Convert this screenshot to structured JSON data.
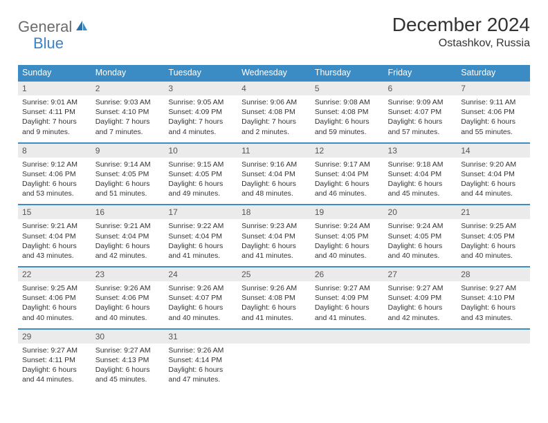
{
  "logo": {
    "text1": "General",
    "text2": "Blue"
  },
  "title": "December 2024",
  "location": "Ostashkov, Russia",
  "weekdays": [
    "Sunday",
    "Monday",
    "Tuesday",
    "Wednesday",
    "Thursday",
    "Friday",
    "Saturday"
  ],
  "colors": {
    "header_bg": "#3b8bc4",
    "daynum_bg": "#ebebeb",
    "border_top": "#3b8bc4",
    "text": "#333333",
    "logo_gray": "#6b6b6b",
    "logo_blue": "#3b82c4",
    "page_bg": "#ffffff"
  },
  "typography": {
    "title_fontsize": 28,
    "location_fontsize": 16,
    "weekday_fontsize": 12.5,
    "daynum_fontsize": 12,
    "body_fontsize": 10.5
  },
  "weeks": [
    [
      {
        "day": "1",
        "sunrise": "Sunrise: 9:01 AM",
        "sunset": "Sunset: 4:11 PM",
        "daylight": "Daylight: 7 hours and 9 minutes."
      },
      {
        "day": "2",
        "sunrise": "Sunrise: 9:03 AM",
        "sunset": "Sunset: 4:10 PM",
        "daylight": "Daylight: 7 hours and 7 minutes."
      },
      {
        "day": "3",
        "sunrise": "Sunrise: 9:05 AM",
        "sunset": "Sunset: 4:09 PM",
        "daylight": "Daylight: 7 hours and 4 minutes."
      },
      {
        "day": "4",
        "sunrise": "Sunrise: 9:06 AM",
        "sunset": "Sunset: 4:08 PM",
        "daylight": "Daylight: 7 hours and 2 minutes."
      },
      {
        "day": "5",
        "sunrise": "Sunrise: 9:08 AM",
        "sunset": "Sunset: 4:08 PM",
        "daylight": "Daylight: 6 hours and 59 minutes."
      },
      {
        "day": "6",
        "sunrise": "Sunrise: 9:09 AM",
        "sunset": "Sunset: 4:07 PM",
        "daylight": "Daylight: 6 hours and 57 minutes."
      },
      {
        "day": "7",
        "sunrise": "Sunrise: 9:11 AM",
        "sunset": "Sunset: 4:06 PM",
        "daylight": "Daylight: 6 hours and 55 minutes."
      }
    ],
    [
      {
        "day": "8",
        "sunrise": "Sunrise: 9:12 AM",
        "sunset": "Sunset: 4:06 PM",
        "daylight": "Daylight: 6 hours and 53 minutes."
      },
      {
        "day": "9",
        "sunrise": "Sunrise: 9:14 AM",
        "sunset": "Sunset: 4:05 PM",
        "daylight": "Daylight: 6 hours and 51 minutes."
      },
      {
        "day": "10",
        "sunrise": "Sunrise: 9:15 AM",
        "sunset": "Sunset: 4:05 PM",
        "daylight": "Daylight: 6 hours and 49 minutes."
      },
      {
        "day": "11",
        "sunrise": "Sunrise: 9:16 AM",
        "sunset": "Sunset: 4:04 PM",
        "daylight": "Daylight: 6 hours and 48 minutes."
      },
      {
        "day": "12",
        "sunrise": "Sunrise: 9:17 AM",
        "sunset": "Sunset: 4:04 PM",
        "daylight": "Daylight: 6 hours and 46 minutes."
      },
      {
        "day": "13",
        "sunrise": "Sunrise: 9:18 AM",
        "sunset": "Sunset: 4:04 PM",
        "daylight": "Daylight: 6 hours and 45 minutes."
      },
      {
        "day": "14",
        "sunrise": "Sunrise: 9:20 AM",
        "sunset": "Sunset: 4:04 PM",
        "daylight": "Daylight: 6 hours and 44 minutes."
      }
    ],
    [
      {
        "day": "15",
        "sunrise": "Sunrise: 9:21 AM",
        "sunset": "Sunset: 4:04 PM",
        "daylight": "Daylight: 6 hours and 43 minutes."
      },
      {
        "day": "16",
        "sunrise": "Sunrise: 9:21 AM",
        "sunset": "Sunset: 4:04 PM",
        "daylight": "Daylight: 6 hours and 42 minutes."
      },
      {
        "day": "17",
        "sunrise": "Sunrise: 9:22 AM",
        "sunset": "Sunset: 4:04 PM",
        "daylight": "Daylight: 6 hours and 41 minutes."
      },
      {
        "day": "18",
        "sunrise": "Sunrise: 9:23 AM",
        "sunset": "Sunset: 4:04 PM",
        "daylight": "Daylight: 6 hours and 41 minutes."
      },
      {
        "day": "19",
        "sunrise": "Sunrise: 9:24 AM",
        "sunset": "Sunset: 4:05 PM",
        "daylight": "Daylight: 6 hours and 40 minutes."
      },
      {
        "day": "20",
        "sunrise": "Sunrise: 9:24 AM",
        "sunset": "Sunset: 4:05 PM",
        "daylight": "Daylight: 6 hours and 40 minutes."
      },
      {
        "day": "21",
        "sunrise": "Sunrise: 9:25 AM",
        "sunset": "Sunset: 4:05 PM",
        "daylight": "Daylight: 6 hours and 40 minutes."
      }
    ],
    [
      {
        "day": "22",
        "sunrise": "Sunrise: 9:25 AM",
        "sunset": "Sunset: 4:06 PM",
        "daylight": "Daylight: 6 hours and 40 minutes."
      },
      {
        "day": "23",
        "sunrise": "Sunrise: 9:26 AM",
        "sunset": "Sunset: 4:06 PM",
        "daylight": "Daylight: 6 hours and 40 minutes."
      },
      {
        "day": "24",
        "sunrise": "Sunrise: 9:26 AM",
        "sunset": "Sunset: 4:07 PM",
        "daylight": "Daylight: 6 hours and 40 minutes."
      },
      {
        "day": "25",
        "sunrise": "Sunrise: 9:26 AM",
        "sunset": "Sunset: 4:08 PM",
        "daylight": "Daylight: 6 hours and 41 minutes."
      },
      {
        "day": "26",
        "sunrise": "Sunrise: 9:27 AM",
        "sunset": "Sunset: 4:09 PM",
        "daylight": "Daylight: 6 hours and 41 minutes."
      },
      {
        "day": "27",
        "sunrise": "Sunrise: 9:27 AM",
        "sunset": "Sunset: 4:09 PM",
        "daylight": "Daylight: 6 hours and 42 minutes."
      },
      {
        "day": "28",
        "sunrise": "Sunrise: 9:27 AM",
        "sunset": "Sunset: 4:10 PM",
        "daylight": "Daylight: 6 hours and 43 minutes."
      }
    ],
    [
      {
        "day": "29",
        "sunrise": "Sunrise: 9:27 AM",
        "sunset": "Sunset: 4:11 PM",
        "daylight": "Daylight: 6 hours and 44 minutes."
      },
      {
        "day": "30",
        "sunrise": "Sunrise: 9:27 AM",
        "sunset": "Sunset: 4:13 PM",
        "daylight": "Daylight: 6 hours and 45 minutes."
      },
      {
        "day": "31",
        "sunrise": "Sunrise: 9:26 AM",
        "sunset": "Sunset: 4:14 PM",
        "daylight": "Daylight: 6 hours and 47 minutes."
      },
      null,
      null,
      null,
      null
    ]
  ]
}
